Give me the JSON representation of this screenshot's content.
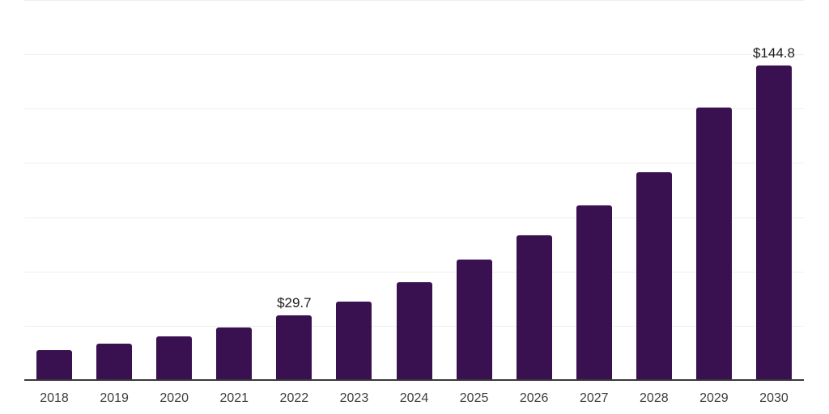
{
  "chart_data": {
    "type": "bar",
    "title": "",
    "xlabel": "",
    "ylabel": "",
    "categories": [
      "2018",
      "2019",
      "2020",
      "2021",
      "2022",
      "2023",
      "2024",
      "2025",
      "2026",
      "2027",
      "2028",
      "2029",
      "2030"
    ],
    "values": [
      13.9,
      16.9,
      20.1,
      24.3,
      29.7,
      36.2,
      45.1,
      55.5,
      66.8,
      80.6,
      95.7,
      125.6,
      144.8
    ],
    "value_labels": [
      "",
      "",
      "",
      "",
      "$29.7",
      "",
      "",
      "",
      "",
      "",
      "",
      "",
      "$144.8"
    ],
    "ylim": [
      0,
      175
    ],
    "gridline_step": 25,
    "grid": true,
    "legend_position": "none",
    "colors": {
      "bar_fill": "#3A1150",
      "axis_line": "#3a3a3a",
      "gridline": "#efefef",
      "tick_label": "#3d3d3d",
      "value_label": "#1c1c1c",
      "background": "#ffffff"
    }
  }
}
